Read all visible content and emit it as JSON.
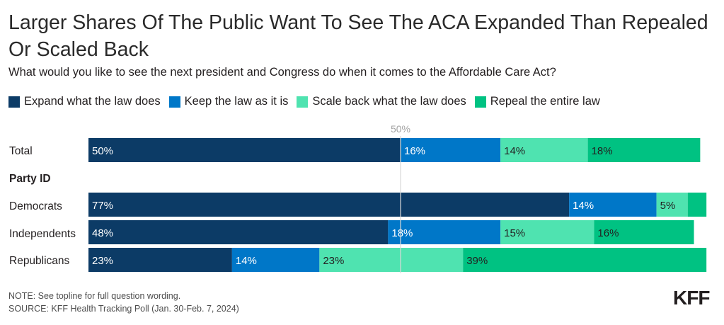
{
  "title": "Larger Shares Of The Public Want To See The ACA Expanded Than Repealed Or Scaled Back",
  "subtitle": "What would you like to see the next president and Congress do when it comes to the Affordable Care Act?",
  "note": "NOTE: See topline for full question wording.",
  "source": "SOURCE: KFF Health Tracking Poll (Jan. 30-Feb. 7, 2024)",
  "logo": "KFF",
  "colors": {
    "expand": "#0c3b66",
    "keep": "#0077c8",
    "scale": "#4fe3b0",
    "repeal": "#00c282",
    "reference_line": "#d9d9d9",
    "reference_label": "#a3a3a3"
  },
  "chart_data": {
    "type": "bar",
    "orientation": "horizontal",
    "stacked": true,
    "xlim": [
      0,
      100
    ],
    "reference_line": {
      "value": 50,
      "label": "50%"
    },
    "series": [
      {
        "key": "expand",
        "name": "Expand what the law does"
      },
      {
        "key": "keep",
        "name": "Keep the law as it is"
      },
      {
        "key": "scale",
        "name": "Scale back what the law does"
      },
      {
        "key": "repeal",
        "name": "Repeal the entire law"
      }
    ],
    "rows": [
      {
        "type": "bar",
        "label": "Total",
        "values": [
          50,
          16,
          14,
          18
        ],
        "value_labels": [
          "50%",
          "16%",
          "14%",
          "18%"
        ]
      },
      {
        "type": "header",
        "label": "Party ID"
      },
      {
        "type": "bar",
        "label": "Democrats",
        "values": [
          77,
          14,
          5,
          3
        ],
        "value_labels": [
          "77%",
          "14%",
          "5%",
          ""
        ]
      },
      {
        "type": "bar",
        "label": "Independents",
        "values": [
          48,
          18,
          15,
          16
        ],
        "value_labels": [
          "48%",
          "18%",
          "15%",
          "16%"
        ]
      },
      {
        "type": "bar",
        "label": "Republicans",
        "values": [
          23,
          14,
          23,
          39
        ],
        "value_labels": [
          "23%",
          "14%",
          "23%",
          "39%"
        ]
      }
    ]
  }
}
